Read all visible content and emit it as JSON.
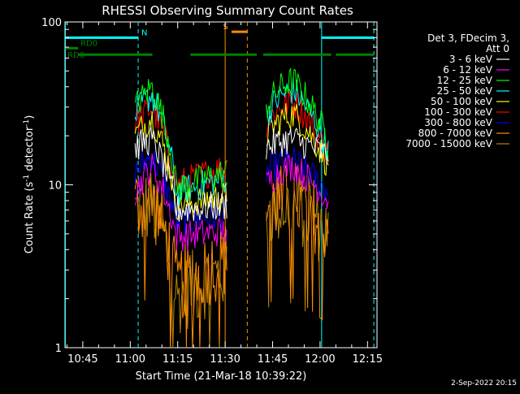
{
  "chart_data": {
    "type": "line",
    "title": "RHESSI Observing Summary Count Rates",
    "xlabel": "Start Time (21-Mar-18 10:39:22)",
    "ylabel_main": "Count Rate (s",
    "ylabel_sup1": "-1",
    "ylabel_mid": " detector",
    "ylabel_sup2": "-1",
    "ylabel_end": ")",
    "yscale": "log",
    "ylim": [
      1,
      100
    ],
    "xlim_min": [
      639.37,
      738.0
    ],
    "x_ticks": [
      {
        "t": 645,
        "label": "10:45"
      },
      {
        "t": 660,
        "label": "11:00"
      },
      {
        "t": 675,
        "label": "11:15"
      },
      {
        "t": 690,
        "label": "11:30"
      },
      {
        "t": 705,
        "label": "11:45"
      },
      {
        "t": 720,
        "label": "12:00"
      },
      {
        "t": 735,
        "label": "12:15"
      }
    ],
    "y_ticks": [
      {
        "v": 1,
        "label": "1"
      },
      {
        "v": 10,
        "label": "10"
      },
      {
        "v": 100,
        "label": "100"
      }
    ],
    "legend_header": [
      "Det 3, FDecim 3,",
      "Att 0"
    ],
    "series": [
      {
        "name": "3 - 6 keV",
        "color": "#ffffff",
        "approx_levels": {
          "seg1_start": 17,
          "seg1_peak": 19,
          "seg1_floor": 7.0,
          "seg1_end": 7.5,
          "seg2_start": 17,
          "seg2_peak": 19,
          "seg2_end": 15
        }
      },
      {
        "name": "6 - 12 keV",
        "color": "#ff00ff",
        "approx_levels": {
          "seg1_start": 9,
          "seg1_peak": 13,
          "seg1_floor": 4.8,
          "seg1_end": 5.2,
          "seg2_start": 10,
          "seg2_peak": 13,
          "seg2_end": 8
        }
      },
      {
        "name": "12 - 25 keV",
        "color": "#00ff00",
        "approx_levels": {
          "seg1_start": 30,
          "seg1_peak": 40,
          "seg1_floor": 9.5,
          "seg1_end": 12,
          "seg2_start": 30,
          "seg2_peak": 43,
          "seg2_end": 18
        }
      },
      {
        "name": "25 - 50 keV",
        "color": "#00ffff",
        "approx_levels": {
          "seg1_start": 27,
          "seg1_peak": 36,
          "seg1_floor": 9.0,
          "seg1_end": 11,
          "seg2_start": 27,
          "seg2_peak": 38,
          "seg2_end": 16
        }
      },
      {
        "name": "50 - 100 keV",
        "color": "#ffff00",
        "approx_levels": {
          "seg1_start": 20,
          "seg1_peak": 26,
          "seg1_floor": 7.5,
          "seg1_end": 8.5,
          "seg2_start": 20,
          "seg2_peak": 27,
          "seg2_end": 13
        }
      },
      {
        "name": "100 - 300 keV",
        "color": "#ff0000",
        "approx_levels": {
          "seg1_start": 24,
          "seg1_peak": 30,
          "seg1_floor": 10,
          "seg1_end": 13,
          "seg2_start": 24,
          "seg2_peak": 32,
          "seg2_end": 15
        }
      },
      {
        "name": "300 - 800 keV",
        "color": "#0000ff",
        "approx_levels": {
          "seg1_start": 12,
          "seg1_peak": 15,
          "seg1_floor": 6.0,
          "seg1_end": 6.5,
          "seg2_start": 12,
          "seg2_peak": 14,
          "seg2_end": 9
        }
      },
      {
        "name": "800 - 7000 keV",
        "color": "#ff8c00",
        "approx_levels": {
          "seg1_start": 7.5,
          "seg1_peak": 8,
          "seg1_floor": 2.4,
          "seg1_end": 3.5,
          "seg2_start": 7.5,
          "seg2_peak": 8,
          "seg2_end": 5.5
        }
      },
      {
        "name": "7000 - 15000 keV",
        "color": "#b8860b",
        "approx_levels": {
          "seg1_start": 7,
          "seg1_peak": 7.5,
          "seg1_floor": 2.0,
          "seg1_end": 3.0,
          "seg2_start": 7,
          "seg2_peak": 7.5,
          "seg2_end": 5
        }
      }
    ],
    "data_segments_min": [
      [
        661.5,
        690.5
      ],
      [
        703.0,
        722.6
      ]
    ],
    "vlines": [
      {
        "t": 639.5,
        "color": "#00ffff",
        "style": "solid"
      },
      {
        "t": 662.5,
        "color": "#00ffff",
        "style": "dashed"
      },
      {
        "t": 720.5,
        "color": "#00ffff",
        "style": "solid"
      },
      {
        "t": 737.0,
        "color": "#00ffff",
        "style": "dashed"
      },
      {
        "t": 690.0,
        "color": "#ff8c00",
        "style": "solid"
      },
      {
        "t": 697.0,
        "color": "#ff8c00",
        "style": "dashed"
      }
    ],
    "flags": [
      {
        "label": "N",
        "color": "#00ffff",
        "bars": [
          [
            639.5,
            662.5
          ],
          [
            720.5,
            737.0
          ]
        ],
        "level": 80
      },
      {
        "label": "S",
        "color": "#ff8c00",
        "bars": [
          [
            692.0,
            697.0
          ]
        ],
        "level": 87
      },
      {
        "label": "RD0",
        "color": "#008000",
        "bars": [
          [
            639.5,
            643.5
          ]
        ],
        "level": 69
      },
      {
        "label": "RD6",
        "color": "#008000",
        "bars": [
          [
            643.5,
            667.0
          ],
          [
            679.0,
            700.0
          ],
          [
            702.0,
            723.5
          ],
          [
            725.0,
            737.0
          ]
        ],
        "level": 63
      }
    ],
    "grid": false,
    "legend_placement": "right",
    "footer_date": "2-Sep-2022 20:15"
  }
}
